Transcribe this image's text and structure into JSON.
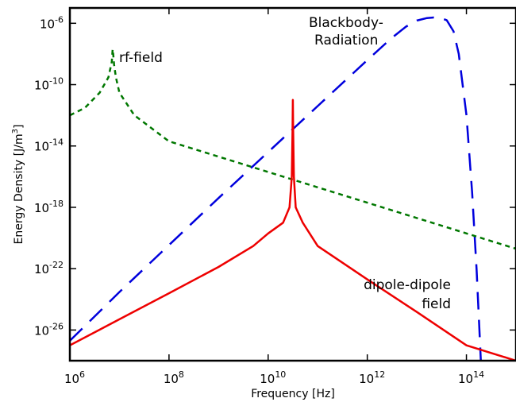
{
  "chart_data": {
    "type": "line",
    "title": "",
    "xlabel": "Frequency [Hz]",
    "ylabel_main": "Energy Density [J/m",
    "ylabel_sup": "3",
    "ylabel_end": "]",
    "xscale": "log",
    "yscale": "log",
    "xlim": [
      1000000.0,
      1000000000000000.0
    ],
    "ylim": [
      1e-28,
      1e-05
    ],
    "grid": false,
    "legend": "none",
    "x_ticks": [
      {
        "base": "10",
        "exp": "6",
        "value": 1000000.0
      },
      {
        "base": "10",
        "exp": "8",
        "value": 100000000.0
      },
      {
        "base": "10",
        "exp": "10",
        "value": 10000000000.0
      },
      {
        "base": "10",
        "exp": "12",
        "value": 1000000000000.0
      },
      {
        "base": "10",
        "exp": "14",
        "value": 100000000000000.0
      }
    ],
    "y_ticks": [
      {
        "base": "10",
        "exp": "-6",
        "value": 1e-06
      },
      {
        "base": "10",
        "exp": "-10",
        "value": 1e-10
      },
      {
        "base": "10",
        "exp": "-14",
        "value": 1e-14
      },
      {
        "base": "10",
        "exp": "-18",
        "value": 1e-18
      },
      {
        "base": "10",
        "exp": "-22",
        "value": 1e-22
      },
      {
        "base": "10",
        "exp": "-26",
        "value": 1e-26
      }
    ],
    "annotations": {
      "rf": "rf-field",
      "blackbody_line1": "Blackbody-",
      "blackbody_line2": "Radiation",
      "dipole_line1": "dipole-dipole",
      "dipole_line2": "field"
    },
    "series": [
      {
        "key": "blackbody",
        "color": "#0000dd",
        "style": "long-dash",
        "points": [
          [
            1000000.0,
            2e-27
          ],
          [
            10000000.0,
            3e-24
          ],
          [
            100000000.0,
            3.5e-21
          ],
          [
            1000000000.0,
            4e-18
          ],
          [
            10000000000.0,
            4e-15
          ],
          [
            100000000000.0,
            4e-12
          ],
          [
            1000000000000.0,
            4e-09
          ],
          [
            3000000000000.0,
            1e-07
          ],
          [
            6000000000000.0,
            6e-07
          ],
          [
            10000000000000.0,
            1.5e-06
          ],
          [
            16000000000000.0,
            2.2e-06
          ],
          [
            22000000000000.0,
            2.4e-06
          ],
          [
            30000000000000.0,
            2.2e-06
          ],
          [
            40000000000000.0,
            1.6e-06
          ],
          [
            55000000000000.0,
            3e-07
          ],
          [
            70000000000000.0,
            1e-08
          ],
          [
            100000000000000.0,
            1e-12
          ],
          [
            130000000000000.0,
            1e-17
          ],
          [
            160000000000000.0,
            1e-22
          ],
          [
            180000000000000.0,
            3e-26
          ],
          [
            195000000000000.0,
            1e-28
          ]
        ]
      },
      {
        "key": "rf",
        "color": "#007700",
        "style": "short-dash",
        "points": [
          [
            1000000.0,
            1e-12
          ],
          [
            2000000.0,
            3e-12
          ],
          [
            4000000.0,
            3e-11
          ],
          [
            6000000.0,
            3e-10
          ],
          [
            7000000.0,
            3e-09
          ],
          [
            7300000.0,
            2e-08
          ],
          [
            7500000.0,
            1e-08
          ],
          [
            7800000.0,
            2e-09
          ],
          [
            8500000.0,
            3e-10
          ],
          [
            10000000.0,
            3e-11
          ],
          [
            20000000.0,
            1e-12
          ],
          [
            100000000.0,
            2e-14
          ],
          [
            1000000000.0,
            2e-15
          ],
          [
            10000000000.0,
            2e-16
          ],
          [
            100000000000.0,
            2e-17
          ],
          [
            1000000000000.0,
            2e-18
          ],
          [
            10000000000000.0,
            2e-19
          ],
          [
            100000000000000.0,
            2e-20
          ],
          [
            1000000000000000.0,
            2e-21
          ]
        ]
      },
      {
        "key": "dipole",
        "color": "#ee0000",
        "style": "solid",
        "points": [
          [
            1000000.0,
            1e-27
          ],
          [
            10000000.0,
            5e-26
          ],
          [
            100000000.0,
            2.5e-24
          ],
          [
            1000000000.0,
            1.3e-22
          ],
          [
            5000000000.0,
            3e-21
          ],
          [
            10000000000.0,
            2e-20
          ],
          [
            20000000000.0,
            1e-19
          ],
          [
            27000000000.0,
            1e-18
          ],
          [
            30000000000.0,
            1e-16
          ],
          [
            31000000000.0,
            1e-13
          ],
          [
            31500000000.0,
            1e-11
          ],
          [
            32000000000.0,
            1e-13
          ],
          [
            33000000000.0,
            1e-16
          ],
          [
            36000000000.0,
            1e-18
          ],
          [
            50000000000.0,
            1e-19
          ],
          [
            100000000000.0,
            3e-21
          ],
          [
            1000000000000.0,
            2e-23
          ],
          [
            10000000000000.0,
            1.5e-25
          ],
          [
            100000000000000.0,
            1e-27
          ],
          [
            1000000000000000.0,
            1e-28
          ]
        ]
      }
    ]
  }
}
